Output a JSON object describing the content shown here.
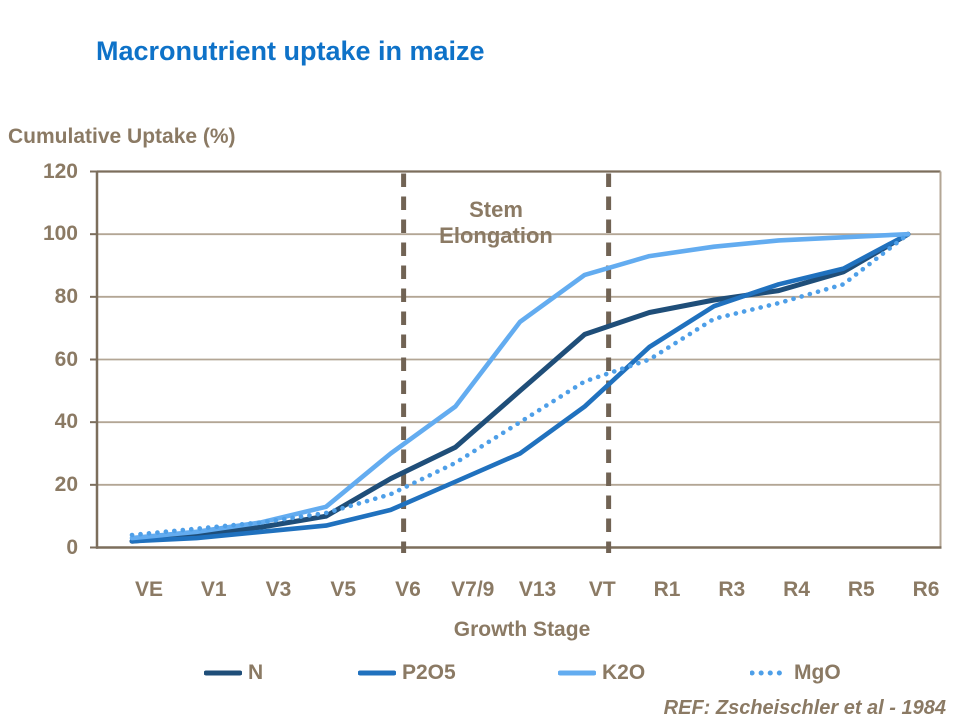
{
  "title": "Macronutrient uptake in maize",
  "footer": {
    "ref": "REF: Zscheischler et al - 1984"
  },
  "colors": {
    "title_blue": "#0E72C8",
    "label_brown": "#8B7A64",
    "axis_line": "#7C6E5C",
    "gridline": "#B3A695",
    "dashed_marker": "#716354"
  },
  "chart_data": {
    "type": "line",
    "title": "Macronutrient uptake in maize",
    "xlabel": "Growth Stage",
    "ylabel": "Cumulative Uptake (%)",
    "ylim": [
      0,
      120
    ],
    "y_ticks": [
      0,
      20,
      40,
      60,
      80,
      100,
      120
    ],
    "grid": "horizontal",
    "legend_position": "bottom",
    "categories": [
      "VE",
      "V1",
      "V3",
      "V5",
      "V6",
      "V7/9",
      "V13",
      "VT",
      "R1",
      "R3",
      "R4",
      "R5",
      "R6"
    ],
    "series": [
      {
        "name": "N",
        "color": "#1F4E79",
        "style": "solid",
        "values": [
          2,
          4,
          6.5,
          10,
          22,
          32,
          50,
          68,
          75,
          79,
          82,
          88,
          100
        ]
      },
      {
        "name": "P2O5",
        "color": "#2071BE",
        "style": "solid",
        "values": [
          2,
          3,
          5,
          7,
          12,
          21,
          30,
          45,
          64,
          77,
          84,
          89,
          100
        ]
      },
      {
        "name": "K2O",
        "color": "#63ACF0",
        "style": "solid",
        "values": [
          3,
          5,
          8,
          13,
          30,
          45,
          72,
          87,
          93,
          96,
          98,
          99,
          100
        ]
      },
      {
        "name": "MgO",
        "color": "#4E9FE8",
        "style": "dotted",
        "values": [
          4,
          6,
          8,
          11,
          17,
          27,
          40,
          53,
          60,
          73,
          78,
          84,
          100
        ]
      }
    ],
    "annotations": {
      "stage_band": {
        "label": "Stem Elongation",
        "from_index": 4.2,
        "to_index": 7.37,
        "line_style": "dashed",
        "color": "#716354"
      }
    }
  }
}
